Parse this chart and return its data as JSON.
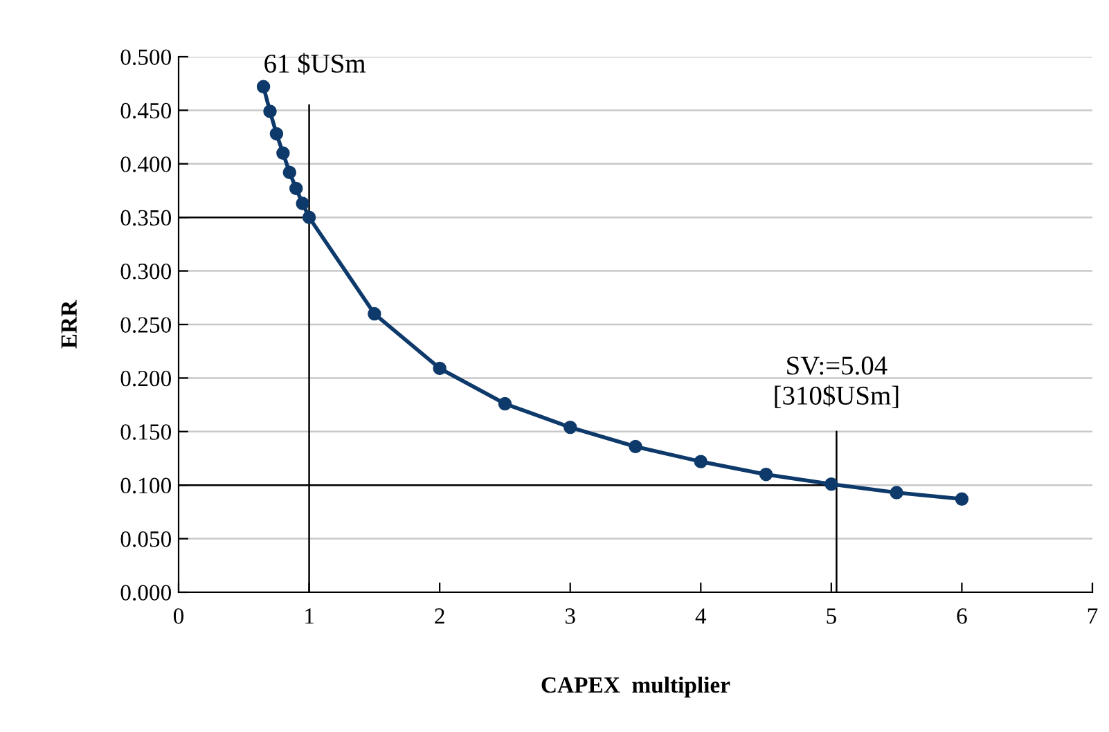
{
  "chart_data": {
    "type": "line",
    "xlabel": "CAPEX  multiplier",
    "ylabel": "ERR",
    "xlim": [
      0,
      7
    ],
    "xticks": [
      0,
      1,
      2,
      3,
      4,
      5,
      6,
      7
    ],
    "ylim": [
      0,
      0.5
    ],
    "yticks": [
      {
        "value": 0,
        "label": "0.000"
      },
      {
        "value": 0.05,
        "label": "0.050"
      },
      {
        "value": 0.1,
        "label": "0.100"
      },
      {
        "value": 0.15,
        "label": "0.150"
      },
      {
        "value": 0.2,
        "label": "0.200"
      },
      {
        "value": 0.25,
        "label": "0.250"
      },
      {
        "value": 0.3,
        "label": "0.300"
      },
      {
        "value": 0.35,
        "label": "0.350"
      },
      {
        "value": 0.4,
        "label": "0.400"
      },
      {
        "value": 0.45,
        "label": "0.450"
      },
      {
        "value": 0.5,
        "label": "0.500"
      }
    ],
    "grid": "y",
    "legend": false,
    "series": [
      {
        "color": "#0e3a6b",
        "marker": "circle",
        "x": [
          0.65,
          0.7,
          0.75,
          0.8,
          0.85,
          0.9,
          0.95,
          1.0,
          1.5,
          2,
          2.5,
          3,
          3.5,
          4,
          4.5,
          5,
          5.5,
          6
        ],
        "values": [
          0.472,
          0.449,
          0.428,
          0.41,
          0.392,
          0.377,
          0.363,
          0.35,
          0.26,
          0.209,
          0.176,
          0.154,
          0.136,
          0.122,
          0.11,
          0.101,
          0.093,
          0.087
        ]
      },
      {
        "color": "#000000",
        "marker": "none",
        "x": [
          0,
          1,
          1,
          1
        ],
        "values": [
          0.35,
          0.35,
          0.455,
          0
        ]
      },
      {
        "color": "#000000",
        "marker": "none",
        "x": [
          0,
          5.04,
          5.04,
          5.04
        ],
        "values": [
          0.1,
          0.1,
          0.15,
          0
        ]
      }
    ],
    "annotations": [
      {
        "text": "61 $USm",
        "x": 0.65,
        "y": 0.48
      },
      "SV:=5.04\n[310$USm]"
    ]
  }
}
